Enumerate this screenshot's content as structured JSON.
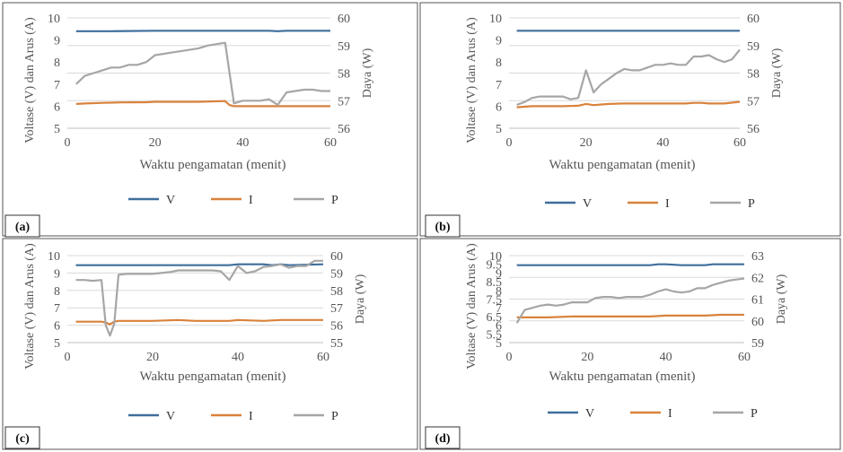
{
  "colors": {
    "V": "#3f6e9c",
    "I": "#d9823b",
    "P": "#a6a6a6"
  },
  "chart_data": [
    {
      "id": "a",
      "type": "line",
      "label": "(a)",
      "xlabel": "Waktu pengamatan (menit)",
      "ylabel": "Voltase (V) dan Arus (A)",
      "y2label": "Daya (W)",
      "xlim": [
        0,
        60
      ],
      "xticks": [
        "0",
        "20",
        "40",
        "60"
      ],
      "xtick_values": [
        0,
        20,
        40,
        60
      ],
      "ylim": [
        5,
        10
      ],
      "yticks": [
        "5",
        "6",
        "7",
        "8",
        "9",
        "10"
      ],
      "y2lim": [
        56,
        60
      ],
      "y2ticks": [
        "56",
        "57",
        "58",
        "59",
        "60"
      ],
      "legend": [
        "V",
        "I",
        "P"
      ],
      "series": [
        {
          "name": "V",
          "axis": "left",
          "x": [
            2,
            10,
            20,
            30,
            36,
            40,
            46,
            48,
            50,
            60
          ],
          "y": [
            9.4,
            9.4,
            9.42,
            9.42,
            9.42,
            9.42,
            9.42,
            9.4,
            9.42,
            9.42
          ]
        },
        {
          "name": "I",
          "axis": "left",
          "x": [
            2,
            4,
            8,
            12,
            18,
            20,
            24,
            30,
            36,
            37,
            38,
            44,
            50,
            60
          ],
          "y": [
            6.1,
            6.12,
            6.15,
            6.17,
            6.18,
            6.2,
            6.2,
            6.2,
            6.23,
            6.05,
            6.0,
            6.0,
            6.0,
            6.0
          ]
        },
        {
          "name": "P",
          "axis": "right",
          "x": [
            2,
            4,
            6,
            8,
            10,
            12,
            14,
            16,
            18,
            20,
            22,
            24,
            26,
            28,
            30,
            32,
            34,
            36,
            38,
            40,
            42,
            44,
            46,
            48,
            50,
            52,
            54,
            56,
            58,
            60
          ],
          "y": [
            57.6,
            57.9,
            58.0,
            58.1,
            58.2,
            58.2,
            58.3,
            58.3,
            58.4,
            58.65,
            58.7,
            58.75,
            58.8,
            58.85,
            58.9,
            59.0,
            59.05,
            59.1,
            56.9,
            57.0,
            57.0,
            57.0,
            57.05,
            56.85,
            57.3,
            57.35,
            57.4,
            57.4,
            57.35,
            57.35
          ]
        }
      ]
    },
    {
      "id": "b",
      "type": "line",
      "label": "(b)",
      "xlabel": "Waktu pengamatan (menit)",
      "ylabel": "Voltase (V) dan Arus (A)",
      "y2label": "Daya (W)",
      "xlim": [
        0,
        60
      ],
      "xticks": [
        "0",
        "20",
        "40",
        "60"
      ],
      "xtick_values": [
        0,
        20,
        40,
        60
      ],
      "ylim": [
        5,
        10
      ],
      "yticks": [
        "5",
        "6",
        "7",
        "8",
        "9",
        "10"
      ],
      "y2lim": [
        56,
        60
      ],
      "y2ticks": [
        "56",
        "57",
        "58",
        "59",
        "60"
      ],
      "legend": [
        "V",
        "I",
        "P"
      ],
      "series": [
        {
          "name": "V",
          "axis": "left",
          "x": [
            2,
            20,
            40,
            60
          ],
          "y": [
            9.42,
            9.42,
            9.42,
            9.42
          ]
        },
        {
          "name": "I",
          "axis": "left",
          "x": [
            2,
            6,
            10,
            14,
            18,
            20,
            22,
            26,
            30,
            34,
            40,
            46,
            48,
            50,
            52,
            56,
            60
          ],
          "y": [
            5.95,
            6.0,
            6.0,
            6.0,
            6.02,
            6.1,
            6.05,
            6.1,
            6.12,
            6.12,
            6.12,
            6.12,
            6.15,
            6.15,
            6.12,
            6.12,
            6.2
          ]
        },
        {
          "name": "P",
          "axis": "right",
          "x": [
            2,
            4,
            6,
            8,
            10,
            12,
            14,
            16,
            18,
            20,
            22,
            24,
            26,
            28,
            30,
            32,
            34,
            36,
            38,
            40,
            42,
            44,
            46,
            48,
            50,
            52,
            54,
            56,
            58,
            60
          ],
          "y": [
            56.85,
            56.95,
            57.1,
            57.15,
            57.15,
            57.15,
            57.15,
            57.05,
            57.1,
            58.1,
            57.3,
            57.6,
            57.8,
            58.0,
            58.15,
            58.1,
            58.1,
            58.2,
            58.3,
            58.3,
            58.35,
            58.3,
            58.3,
            58.6,
            58.6,
            58.65,
            58.5,
            58.4,
            58.5,
            58.85
          ]
        }
      ]
    },
    {
      "id": "c",
      "type": "line",
      "label": "(c)",
      "xlabel": "Waktu pengamatan (menit)",
      "ylabel": "Voltase (V) dan Arus (A)",
      "y2label": "Daya (W)",
      "xlim": [
        0,
        60
      ],
      "xticks": [
        "0",
        "20",
        "40",
        "60"
      ],
      "xtick_values": [
        0,
        20,
        40,
        60
      ],
      "ylim": [
        5,
        10
      ],
      "yticks": [
        "5",
        "6",
        "7",
        "8",
        "9",
        "10"
      ],
      "y2lim": [
        55,
        60
      ],
      "y2ticks": [
        "55",
        "56",
        "57",
        "58",
        "59",
        "60"
      ],
      "legend": [
        "V",
        "I",
        "P"
      ],
      "series": [
        {
          "name": "V",
          "axis": "left",
          "x": [
            2,
            20,
            38,
            40,
            46,
            48,
            50,
            52,
            60
          ],
          "y": [
            9.45,
            9.45,
            9.45,
            9.5,
            9.5,
            9.45,
            9.5,
            9.45,
            9.5
          ]
        },
        {
          "name": "I",
          "axis": "left",
          "x": [
            2,
            8,
            9,
            10,
            11,
            12,
            20,
            26,
            30,
            38,
            40,
            46,
            50,
            60
          ],
          "y": [
            6.2,
            6.2,
            6.15,
            6.05,
            6.2,
            6.25,
            6.25,
            6.3,
            6.25,
            6.25,
            6.3,
            6.25,
            6.3,
            6.3
          ]
        },
        {
          "name": "P",
          "axis": "right",
          "x": [
            2,
            4,
            6,
            8,
            9,
            10,
            11,
            12,
            14,
            16,
            18,
            20,
            22,
            24,
            26,
            28,
            30,
            32,
            34,
            36,
            38,
            40,
            42,
            44,
            46,
            48,
            50,
            52,
            54,
            56,
            58,
            60
          ],
          "y": [
            58.6,
            58.6,
            58.55,
            58.6,
            56.0,
            55.4,
            56.1,
            58.9,
            58.95,
            58.95,
            58.95,
            58.95,
            59.0,
            59.05,
            59.15,
            59.15,
            59.15,
            59.15,
            59.15,
            59.1,
            58.6,
            59.4,
            59.0,
            59.1,
            59.35,
            59.4,
            59.5,
            59.3,
            59.4,
            59.4,
            59.7,
            59.7
          ]
        }
      ]
    },
    {
      "id": "d",
      "type": "line",
      "label": "(d)",
      "xlabel": "Waktu pengamatan (menit)",
      "ylabel": "Voltase (V) dan Arus (A)",
      "y2label": "Daya (W)",
      "xlim": [
        0,
        60
      ],
      "xticks": [
        "0",
        "20",
        "40",
        "60"
      ],
      "xtick_values": [
        0,
        20,
        40,
        60
      ],
      "ylim": [
        5,
        10
      ],
      "yticks": [
        "5",
        "5.5",
        "6",
        "6.5",
        "7",
        "7.5",
        "8",
        "8.5",
        "9",
        "9.5",
        "10"
      ],
      "y2lim": [
        59,
        63
      ],
      "y2ticks": [
        "59",
        "60",
        "61",
        "62",
        "63"
      ],
      "legend": [
        "V",
        "I",
        "P"
      ],
      "series": [
        {
          "name": "V",
          "axis": "left",
          "x": [
            2,
            20,
            36,
            38,
            40,
            44,
            50,
            52,
            60
          ],
          "y": [
            9.45,
            9.45,
            9.45,
            9.5,
            9.5,
            9.45,
            9.45,
            9.5,
            9.5
          ]
        },
        {
          "name": "I",
          "axis": "left",
          "x": [
            2,
            10,
            16,
            20,
            30,
            36,
            40,
            50,
            54,
            60
          ],
          "y": [
            6.45,
            6.45,
            6.5,
            6.5,
            6.5,
            6.5,
            6.55,
            6.55,
            6.6,
            6.6
          ]
        },
        {
          "name": "P",
          "axis": "right",
          "x": [
            2,
            4,
            6,
            8,
            10,
            12,
            14,
            16,
            18,
            20,
            22,
            24,
            26,
            28,
            30,
            32,
            34,
            36,
            38,
            40,
            42,
            44,
            46,
            48,
            50,
            52,
            54,
            56,
            58,
            60
          ],
          "y": [
            59.9,
            60.5,
            60.6,
            60.7,
            60.75,
            60.7,
            60.75,
            60.85,
            60.85,
            60.85,
            61.05,
            61.1,
            61.1,
            61.05,
            61.1,
            61.1,
            61.1,
            61.2,
            61.35,
            61.45,
            61.35,
            61.3,
            61.35,
            61.5,
            61.5,
            61.65,
            61.75,
            61.85,
            61.9,
            61.95
          ]
        }
      ]
    }
  ]
}
